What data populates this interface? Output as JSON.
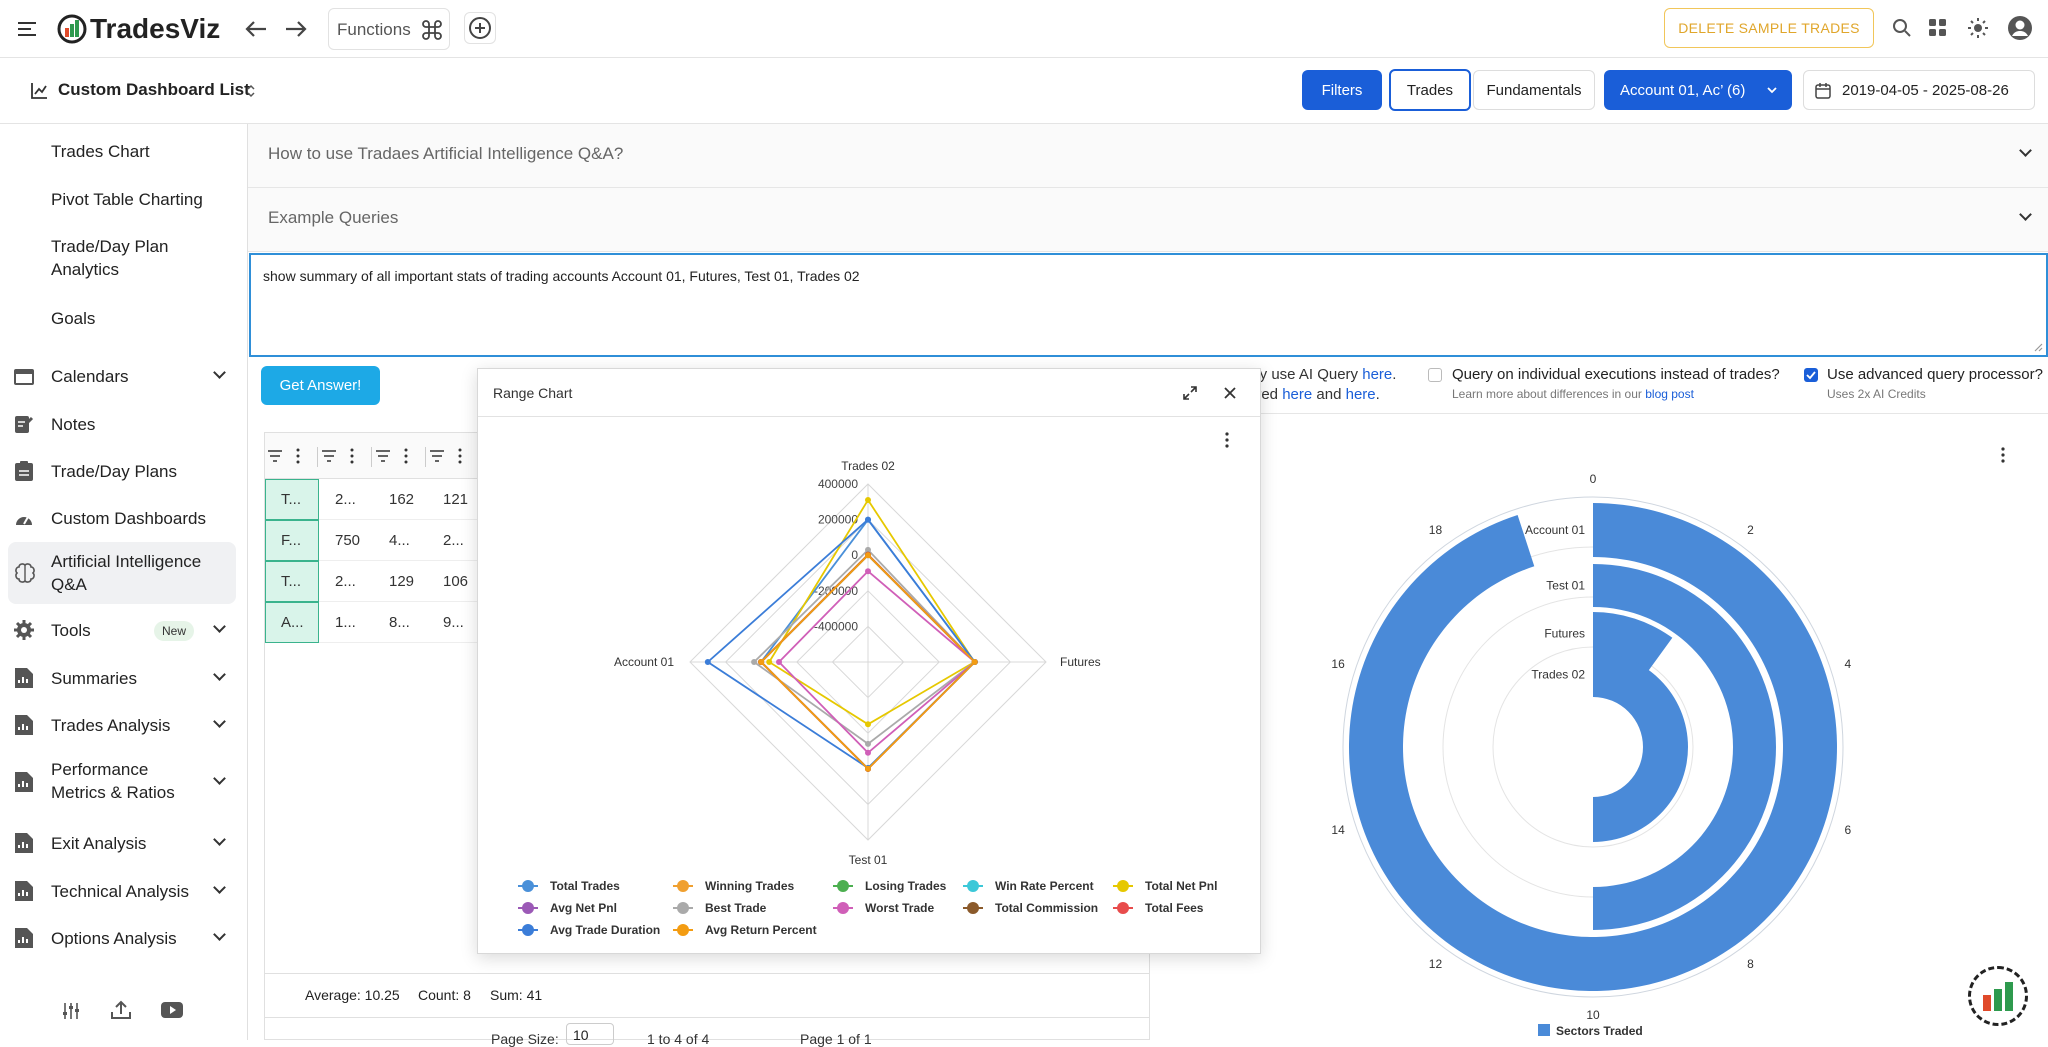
{
  "app": {
    "name": "TradesViz",
    "functions_label": "Functions",
    "delete_sample_label": "DELETE SAMPLE TRADES"
  },
  "subbar": {
    "dashboard_list_label": "Custom Dashboard List",
    "filters_label": "Filters",
    "trades_label": "Trades",
    "fundamentals_label": "Fundamentals",
    "account_label": "Account 01, Ac’ (6)",
    "date_range": "2019-04-05 - 2025-08-26"
  },
  "sidebar": {
    "sub_items": [
      "Trades Chart",
      "Pivot Table Charting",
      "Trade/Day Plan Analytics",
      "Goals"
    ],
    "items": [
      {
        "label": "Calendars",
        "icon": "calendar-icon",
        "chevron": true
      },
      {
        "label": "Notes",
        "icon": "notes-icon",
        "chevron": false
      },
      {
        "label": "Trade/Day Plans",
        "icon": "clipboard-icon",
        "chevron": false
      },
      {
        "label": "Custom Dashboards",
        "icon": "dashboard-icon",
        "chevron": false
      },
      {
        "label": "Artificial Intelligence Q&A",
        "icon": "brain-icon",
        "chevron": false
      },
      {
        "label": "Tools",
        "icon": "gear-icon",
        "chevron": true,
        "badge": "New"
      },
      {
        "label": "Summaries",
        "icon": "report-icon",
        "chevron": true
      },
      {
        "label": "Trades Analysis",
        "icon": "report-icon",
        "chevron": true
      },
      {
        "label": "Performance Metrics & Ratios",
        "icon": "report-icon",
        "chevron": true
      },
      {
        "label": "Exit Analysis",
        "icon": "report-icon",
        "chevron": true
      },
      {
        "label": "Technical Analysis",
        "icon": "report-icon",
        "chevron": true
      },
      {
        "label": "Options Analysis",
        "icon": "report-icon",
        "chevron": true
      }
    ]
  },
  "main": {
    "accordion": [
      "How to use Tradaes Artificial Intelligence Q&A?",
      "Example Queries"
    ],
    "query_text": "show summary of all important stats of trading accounts Account 01, Futures, Test 01, Trades 02",
    "get_answer_label": "Get Answer!",
    "info_line1_pre": "ely use AI Query ",
    "info_line1_link": "here",
    "info_line1_post": ".",
    "info_line2_pre": "ored ",
    "info_line2_link1": "here",
    "info_line2_mid": " and ",
    "info_line2_link2": "here",
    "info_line2_post": ".",
    "executions_label": "Query on individual executions instead of trades?",
    "executions_sub_pre": "Learn more about differences in our ",
    "executions_sub_link": "blog post",
    "advanced_label": "Use advanced query processor?",
    "advanced_sub": "Uses 2x AI Credits",
    "grid_rows": [
      [
        "T...",
        "2...",
        "162",
        "121"
      ],
      [
        "F...",
        "750",
        "4...",
        "2..."
      ],
      [
        "T...",
        "2...",
        "129",
        "106"
      ],
      [
        "A...",
        "1...",
        "8...",
        "9..."
      ]
    ],
    "footer_stats": {
      "average": "Average: 10.25",
      "count": "Count: 8",
      "sum": "Sum: 41"
    },
    "pager": {
      "page_size_label": "Page Size:",
      "page_size": "10",
      "range": "1 to 4 of 4",
      "page": "Page 1 of 1"
    }
  },
  "modal": {
    "title": "Range Chart"
  },
  "chart_data": [
    {
      "type": "radar",
      "title": "Range Chart",
      "axes": [
        "Trades 02",
        "Futures",
        "Test 01",
        "Account 01"
      ],
      "rlim": [
        -600000,
        400000
      ],
      "ticks": [
        "400000",
        "200000",
        "0",
        "-200000",
        "-400000"
      ],
      "legend_position": "bottom",
      "series": [
        {
          "name": "Total Trades",
          "color": "#4a90d9",
          "values": [
            199000,
            120,
            160,
            750
          ]
        },
        {
          "name": "Winning Trades",
          "color": "#f0a030",
          "values": [
            120,
            90,
            100,
            400
          ]
        },
        {
          "name": "Losing Trades",
          "color": "#4caf50",
          "values": [
            80,
            40,
            60,
            350
          ]
        },
        {
          "name": "Win Rate Percent",
          "color": "#3cc8d8",
          "values": [
            60,
            65,
            62,
            53
          ]
        },
        {
          "name": "Total Net Pnl",
          "color": "#e6c800",
          "values": [
            310000,
            -2000,
            -250000,
            -45000
          ]
        },
        {
          "name": "Avg Net Pnl",
          "color": "#9b59b6",
          "values": [
            150,
            -10,
            -20,
            -60
          ]
        },
        {
          "name": "Best Trade",
          "color": "#aaaaaa",
          "values": [
            30000,
            500,
            -140000,
            40000
          ]
        },
        {
          "name": "Worst Trade",
          "color": "#d05fb8",
          "values": [
            -90000,
            -50,
            -90000,
            -100000
          ]
        },
        {
          "name": "Total Commission",
          "color": "#8b5a2b",
          "values": [
            3000,
            100,
            250,
            1200
          ]
        },
        {
          "name": "Total Fees",
          "color": "#e84c4c",
          "values": [
            2000,
            80,
            150,
            800
          ]
        },
        {
          "name": "Avg Trade Duration",
          "color": "#3b7dd8",
          "values": [
            200000,
            500,
            -5000,
            300000
          ]
        },
        {
          "name": "Avg Return Percent",
          "color": "#f39c12",
          "values": [
            0,
            1,
            2,
            3
          ]
        }
      ]
    },
    {
      "type": "radial-bar",
      "categories": [
        "Account 01",
        "Test 01",
        "Futures",
        "Trades 02"
      ],
      "values": [
        19,
        10,
        2,
        10
      ],
      "angular_ticks": [
        "0",
        "2",
        "4",
        "6",
        "8",
        "10",
        "12",
        "14",
        "16",
        "18"
      ],
      "series_name": "Sectors Traded",
      "color": "#4a8ad8"
    }
  ]
}
